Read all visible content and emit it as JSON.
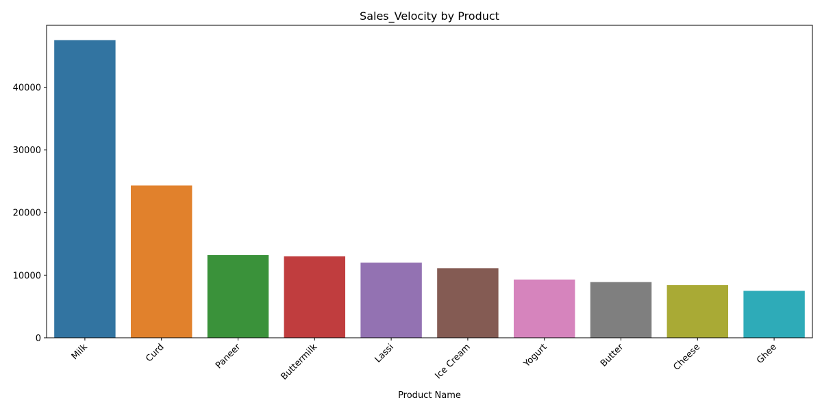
{
  "chart_data": {
    "type": "bar",
    "title": "Sales_Velocity by Product",
    "xlabel": "Product Name",
    "ylabel": "",
    "categories": [
      "Milk",
      "Curd",
      "Paneer",
      "Buttermilk",
      "Lassi",
      "Ice Cream",
      "Yogurt",
      "Butter",
      "Cheese",
      "Ghee"
    ],
    "values": [
      47500,
      24300,
      13200,
      13000,
      12000,
      11100,
      9300,
      8900,
      8400,
      7500
    ],
    "colors": [
      "#3274a1",
      "#e1812c",
      "#3a923a",
      "#c03d3e",
      "#9372b2",
      "#845b53",
      "#d684bd",
      "#7f7f7f",
      "#a9aa35",
      "#2eabb8"
    ],
    "ylim": [
      0,
      49875
    ],
    "yticks": [
      0,
      10000,
      20000,
      30000,
      40000
    ],
    "grid": false,
    "legend": "none"
  }
}
